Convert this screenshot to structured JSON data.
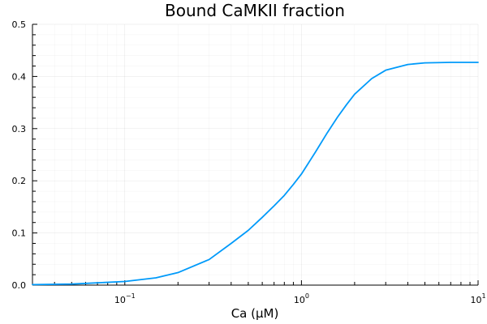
{
  "chart_data": {
    "type": "line",
    "title": "Bound CaMKII fraction",
    "xlabel": "Ca (μM)",
    "ylabel": "",
    "xscale": "log",
    "xlim": [
      0.03,
      10
    ],
    "ylim": [
      0,
      0.5
    ],
    "grid": true,
    "legend": "none",
    "x_ticks": [
      {
        "value": 0.1,
        "base": "10",
        "exp": "−1"
      },
      {
        "value": 1,
        "base": "10",
        "exp": "0"
      },
      {
        "value": 10,
        "base": "10",
        "exp": "1"
      }
    ],
    "y_ticks": [
      {
        "value": 0.0,
        "label": "0.0"
      },
      {
        "value": 0.1,
        "label": "0.1"
      },
      {
        "value": 0.2,
        "label": "0.2"
      },
      {
        "value": 0.3,
        "label": "0.3"
      },
      {
        "value": 0.4,
        "label": "0.4"
      },
      {
        "value": 0.5,
        "label": "0.5"
      }
    ],
    "series": [
      {
        "color": "#009AFA",
        "x": [
          0.03,
          0.05,
          0.1,
          0.15,
          0.2,
          0.3,
          0.4,
          0.5,
          0.6,
          0.7,
          0.8,
          0.9,
          1.0,
          1.2,
          1.4,
          1.6,
          1.8,
          2.0,
          2.5,
          3.0,
          4.0,
          5.0,
          7.0,
          10.0
        ],
        "y": [
          0.001,
          0.002,
          0.007,
          0.014,
          0.024,
          0.049,
          0.08,
          0.105,
          0.13,
          0.152,
          0.172,
          0.193,
          0.213,
          0.255,
          0.292,
          0.322,
          0.346,
          0.366,
          0.396,
          0.412,
          0.423,
          0.426,
          0.427,
          0.427
        ]
      }
    ]
  }
}
